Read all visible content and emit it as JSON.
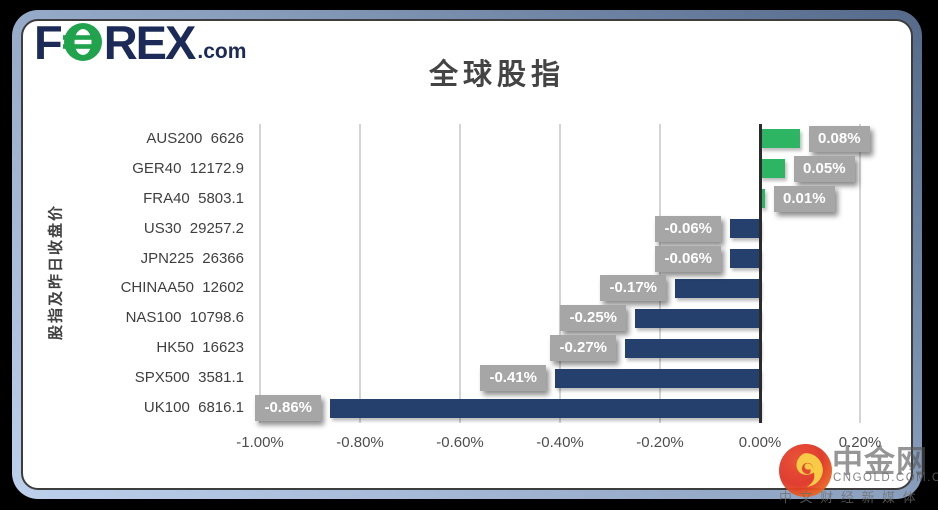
{
  "header": {
    "logo": {
      "part_f": "F",
      "part_rex": "REX",
      "part_tld": ".com"
    },
    "brand_navy": "#1b2a56",
    "brand_green": "#21a24c"
  },
  "chart_data": {
    "type": "bar",
    "orientation": "horizontal",
    "title": "全球股指",
    "ylabel": "股指及昨日收盘价",
    "xlabel": "",
    "xlim": [
      -1.0,
      0.2
    ],
    "grid": true,
    "categories": [
      "AUS200",
      "GER40",
      "FRA40",
      "US30",
      "JPN225",
      "CHINAA50",
      "NAS100",
      "HK50",
      "SPX500",
      "UK100"
    ],
    "closes": [
      "6626",
      "12172.9",
      "5803.1",
      "29257.2",
      "26366",
      "12602",
      "10798.6",
      "16623",
      "3581.1",
      "6816.1"
    ],
    "values": [
      0.08,
      0.05,
      0.01,
      -0.06,
      -0.06,
      -0.17,
      -0.25,
      -0.27,
      -0.41,
      -0.86
    ],
    "value_labels": [
      "0.08%",
      "0.05%",
      "0.01%",
      "-0.06%",
      "-0.06%",
      "-0.17%",
      "-0.25%",
      "-0.27%",
      "-0.41%",
      "-0.86%"
    ],
    "x_ticks": [
      {
        "value": -1.0,
        "label": "-1.00%"
      },
      {
        "value": -0.8,
        "label": "-0.80%"
      },
      {
        "value": -0.6,
        "label": "-0.60%"
      },
      {
        "value": -0.4,
        "label": "-0.40%"
      },
      {
        "value": -0.2,
        "label": "-0.20%"
      },
      {
        "value": 0.0,
        "label": "0.00%"
      },
      {
        "value": 0.2,
        "label": "0.20%"
      }
    ],
    "colors": {
      "positive": "#2eb564",
      "negative": "#25406d",
      "label_bg": "#a6a6a6",
      "label_text": "#ffffff",
      "gridline": "#d4d4d4",
      "zero_axis": "#2b2b2b"
    }
  },
  "watermark": {
    "brand": "中金网",
    "domain": "CNGOLD.COM.CN",
    "tagline": "中 文 财 经 新 媒 体"
  }
}
